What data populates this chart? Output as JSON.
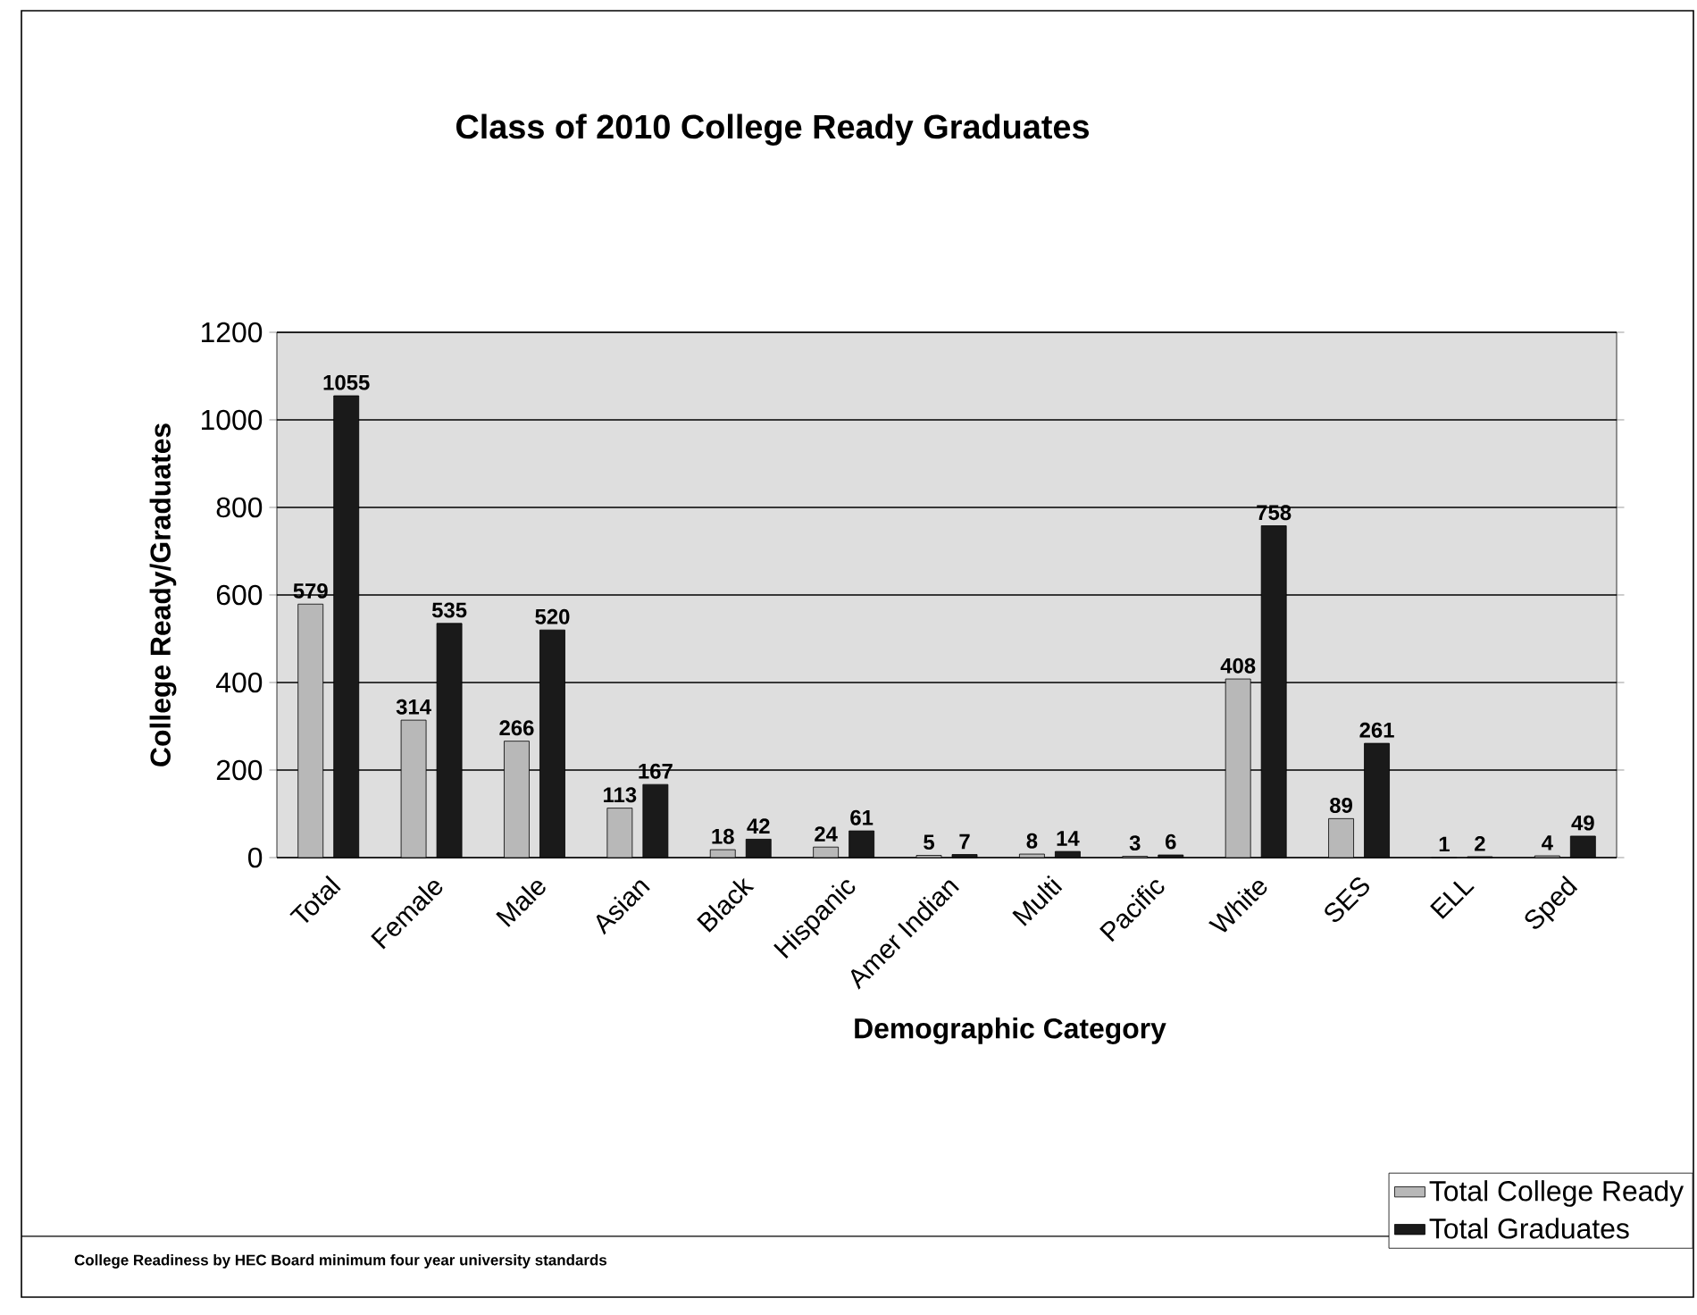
{
  "chart_data": {
    "type": "bar",
    "title": "Class of 2010 College Ready Graduates",
    "xlabel": "Demographic Category",
    "ylabel": "College Ready/Graduates",
    "categories": [
      "Total",
      "Female",
      "Male",
      "Asian",
      "Black",
      "Hispanic",
      "Amer Indian",
      "Multi",
      "Pacific",
      "White",
      "SES",
      "ELL",
      "Sped"
    ],
    "series": [
      {
        "name": "Total College Ready",
        "color": "#b8b8b8",
        "values": [
          579,
          314,
          266,
          113,
          18,
          24,
          5,
          8,
          3,
          408,
          89,
          1,
          4
        ]
      },
      {
        "name": "Total Graduates",
        "color": "#1a1a1a",
        "values": [
          1055,
          535,
          520,
          167,
          42,
          61,
          7,
          14,
          6,
          758,
          261,
          2,
          49
        ]
      }
    ],
    "ylim": [
      0,
      1200
    ],
    "yticks": [
      0,
      200,
      400,
      600,
      800,
      1000,
      1200
    ],
    "grid": "y",
    "legend": "bottom right",
    "data_labels": true,
    "annotations": [
      "College Readiness by HEC Board minimum four year university standards"
    ]
  }
}
